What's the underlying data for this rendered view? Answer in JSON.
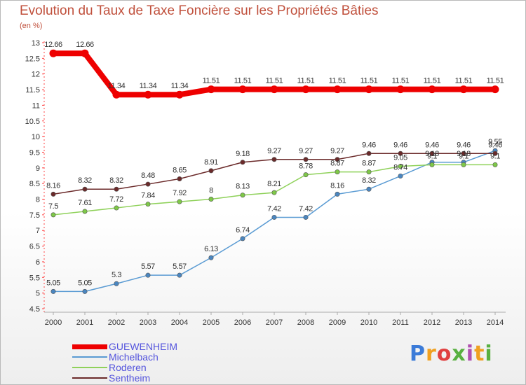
{
  "title": "Evolution du Taux de Taxe Foncière sur les Propriétés Bâties",
  "unit": "(en %)",
  "logo_text": "Proxiti",
  "colors": {
    "GUEWENHEIM": "#ee0000",
    "Michelbach": "#5a9bd3",
    "Roderen": "#8fd15a",
    "Sentheim": "#6b2a2a",
    "title": "#c0503c",
    "legend_text": "#5555dd"
  },
  "chart_data": {
    "type": "line",
    "title": "Evolution du Taux de Taxe Foncière sur les Propriétés Bâties",
    "ylabel": "(en %)",
    "xlabel": "",
    "categories": [
      "2000",
      "2001",
      "2002",
      "2003",
      "2004",
      "2005",
      "2006",
      "2007",
      "2008",
      "2009",
      "2010",
      "2011",
      "2012",
      "2013",
      "2014"
    ],
    "ylim": [
      4.5,
      13
    ],
    "yticks": [
      "4.5",
      "5",
      "5.5",
      "6",
      "6.5",
      "7",
      "7.5",
      "8",
      "8.5",
      "9",
      "9.5",
      "10",
      "10.5",
      "11",
      "11.5",
      "12",
      "12.5",
      "13"
    ],
    "grid": false,
    "legend_position": "bottom-left",
    "series": [
      {
        "name": "GUEWENHEIM",
        "values": [
          12.66,
          12.66,
          11.34,
          11.34,
          11.34,
          11.51,
          11.51,
          11.51,
          11.51,
          11.51,
          11.51,
          11.51,
          11.51,
          11.51,
          11.51
        ],
        "labels": [
          "12.66",
          "12.66",
          "11.34",
          "11.34",
          "11.34",
          "11.51",
          "11.51",
          "11.51",
          "11.51",
          "11.51",
          "11.51",
          "11.51",
          "11.51",
          "11.51",
          "11.51"
        ]
      },
      {
        "name": "Michelbach",
        "values": [
          5.05,
          5.05,
          5.3,
          5.57,
          5.57,
          6.13,
          6.74,
          7.42,
          7.42,
          8.16,
          8.32,
          8.74,
          9.18,
          9.18,
          9.55
        ],
        "labels": [
          "5.05",
          "5.05",
          "5.3",
          "5.57",
          "5.57",
          "6.13",
          "6.74",
          "7.42",
          "7.42",
          "8.16",
          "8.32",
          "8.74",
          "9.18",
          "9.18",
          "9.55"
        ]
      },
      {
        "name": "Roderen",
        "values": [
          7.5,
          7.61,
          7.72,
          7.84,
          7.92,
          8,
          8.13,
          8.21,
          8.78,
          8.87,
          8.87,
          9.05,
          9.1,
          9.1,
          9.1
        ],
        "labels": [
          "7.5",
          "7.61",
          "7.72",
          "7.84",
          "7.92",
          "8",
          "8.13",
          "8.21",
          "8.78",
          "8.87",
          "8.87",
          "9.05",
          "9.1",
          "9.1",
          "9.1"
        ]
      },
      {
        "name": "Sentheim",
        "values": [
          8.16,
          8.32,
          8.32,
          8.48,
          8.65,
          8.91,
          9.18,
          9.27,
          9.27,
          9.27,
          9.46,
          9.46,
          9.46,
          9.46,
          9.46
        ],
        "labels": [
          "8.16",
          "8.32",
          "8.32",
          "8.48",
          "8.65",
          "8.91",
          "9.18",
          "9.27",
          "9.27",
          "9.27",
          "9.46",
          "9.46",
          "9.46",
          "9.46",
          "9.46"
        ]
      }
    ]
  }
}
